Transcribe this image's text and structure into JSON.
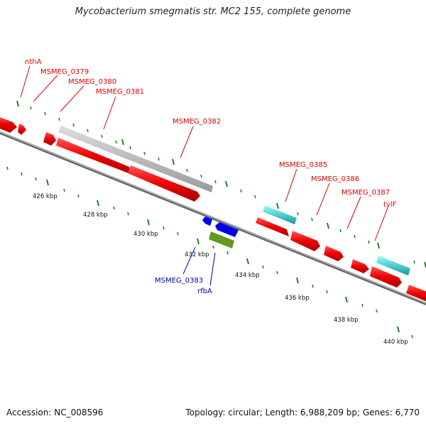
{
  "title": "Mycobacterium smegmatis str. MC2 155, complete genome",
  "accession": "Accession: NC_008596",
  "summary": "Topology: circular; Length: 6,988,209 bp; Genes: 6,770",
  "colors": {
    "forward_gene": "#ee0000",
    "highlight_gene": "#22cccc",
    "pseudo_gene": "#bbbbbb",
    "reverse_gene": "#0000ee",
    "reverse_other": "#669922",
    "forward_label": "#dd0000",
    "reverse_label": "#0000aa",
    "tick": "#117711",
    "backbone": "#777777"
  },
  "forward_genes": [
    "nthA",
    "MSMEG_0379",
    "MSMEG_0380",
    "MSMEG_0381",
    "MSMEG_0382",
    "MSMEG_0385",
    "MSMEG_0386",
    "MSMEG_0387",
    "tylF"
  ],
  "reverse_genes": [
    "MSMEG_0383",
    "rfbA"
  ],
  "scale": [
    "426 kbp",
    "428 kbp",
    "430 kbp",
    "432 kbp",
    "434 kbp",
    "436 kbp",
    "438 kbp",
    "440 kbp"
  ]
}
